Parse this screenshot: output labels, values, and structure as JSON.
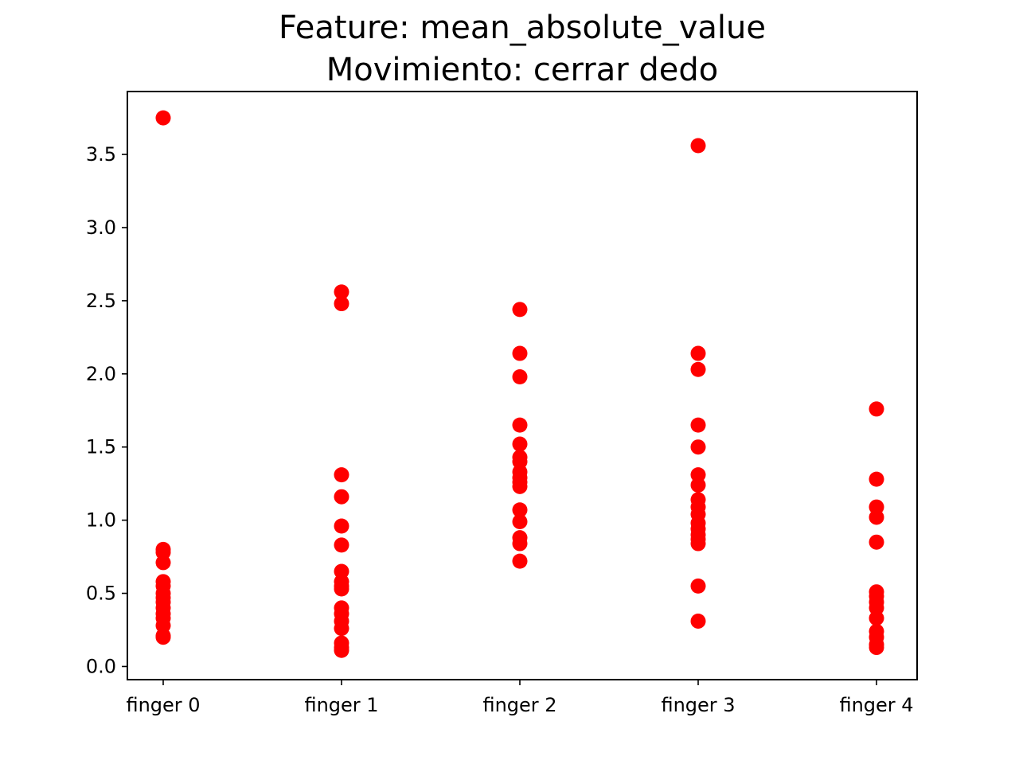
{
  "chart_data": {
    "type": "scatter",
    "title": "Feature: mean_absolute_value",
    "subtitle": "Movimiento: cerrar dedo",
    "categories": [
      "finger 0",
      "finger 1",
      "finger 2",
      "finger 3",
      "finger 4"
    ],
    "y_ticks": [
      "0.0",
      "0.5",
      "1.0",
      "1.5",
      "2.0",
      "2.5",
      "3.0",
      "3.5"
    ],
    "ylim": [
      -0.09,
      3.93
    ],
    "grid": false,
    "marker_color": "#ff0000",
    "points": [
      [
        3.75,
        0.8,
        0.78,
        0.71,
        0.58,
        0.55,
        0.5,
        0.47,
        0.44,
        0.4,
        0.36,
        0.33,
        0.28,
        0.21,
        0.2
      ],
      [
        2.56,
        2.48,
        1.31,
        1.16,
        0.96,
        0.83,
        0.65,
        0.58,
        0.55,
        0.53,
        0.4,
        0.36,
        0.31,
        0.26,
        0.16,
        0.13,
        0.11
      ],
      [
        2.44,
        2.14,
        1.98,
        1.65,
        1.52,
        1.43,
        1.4,
        1.33,
        1.29,
        1.26,
        1.23,
        1.07,
        0.99,
        0.88,
        0.84,
        0.72
      ],
      [
        3.56,
        2.14,
        2.03,
        1.65,
        1.5,
        1.31,
        1.24,
        1.14,
        1.09,
        1.04,
        0.98,
        0.94,
        0.9,
        0.87,
        0.84,
        0.55,
        0.31
      ],
      [
        1.76,
        1.28,
        1.09,
        1.02,
        0.85,
        0.51,
        0.48,
        0.44,
        0.4,
        0.33,
        0.24,
        0.2,
        0.15,
        0.13
      ]
    ]
  }
}
